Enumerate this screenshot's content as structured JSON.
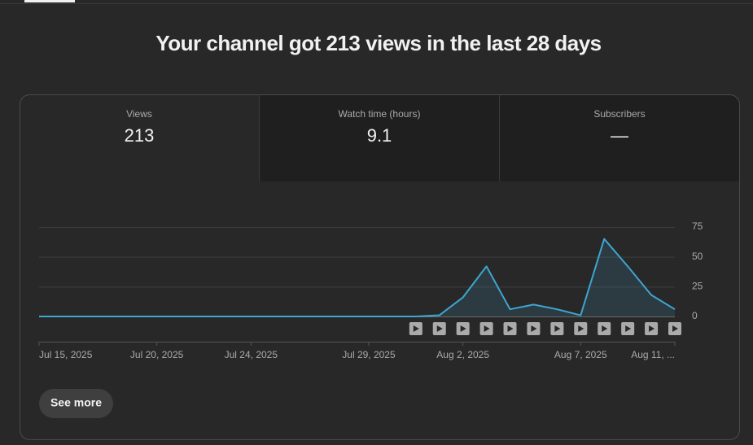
{
  "header": {
    "title": "Your channel got 213 views in the last 28 days"
  },
  "metrics": [
    {
      "label": "Views",
      "value": "213"
    },
    {
      "label": "Watch time (hours)",
      "value": "9.1"
    },
    {
      "label": "Subscribers",
      "value": "—"
    }
  ],
  "chart_data": {
    "type": "line",
    "categories": [
      "Jul 15, 2025",
      null,
      null,
      null,
      null,
      "Jul 20, 2025",
      null,
      null,
      null,
      "Jul 24, 2025",
      null,
      null,
      null,
      null,
      "Jul 29, 2025",
      null,
      null,
      null,
      "Aug 2, 2025",
      null,
      null,
      null,
      null,
      "Aug 7, 2025",
      null,
      null,
      null,
      "Aug 11, ..."
    ],
    "series": [
      {
        "color": "#3ea6d1",
        "values": [
          0,
          0,
          0,
          0,
          0,
          0,
          0,
          0,
          0,
          0,
          0,
          0,
          0,
          0,
          0,
          0,
          0,
          1,
          16,
          42,
          6,
          10,
          6,
          1,
          65,
          42,
          18,
          6
        ]
      }
    ],
    "ylim": [
      0,
      75
    ],
    "yticks": [
      0,
      25,
      50,
      75
    ],
    "grid": true
  },
  "button": {
    "label": "See more"
  }
}
